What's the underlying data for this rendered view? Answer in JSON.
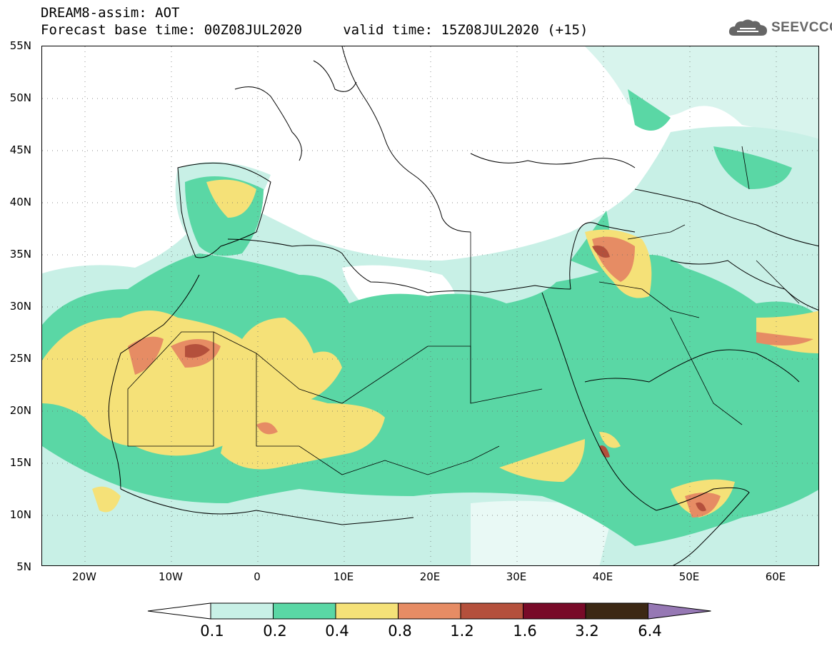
{
  "header": {
    "line1": "DREAM8-assim: AOT",
    "line2": "Forecast base time: 00Z08JUL2020     valid time: 15Z08JUL2020 (+15)"
  },
  "logo": {
    "text": "SEEVCCC",
    "icon": "cloud-icon"
  },
  "map": {
    "lon_range": [
      -25,
      65
    ],
    "lat_range": [
      5,
      55
    ],
    "lat_ticks": [
      "55N",
      "50N",
      "45N",
      "40N",
      "35N",
      "30N",
      "25N",
      "20N",
      "15N",
      "10N",
      "5N"
    ],
    "lon_ticks": [
      "20W",
      "10W",
      "0",
      "10E",
      "20E",
      "30E",
      "40E",
      "50E",
      "60E"
    ],
    "grid": "dotted"
  },
  "colorbar": {
    "labels": [
      "0.1",
      "0.2",
      "0.4",
      "0.8",
      "1.2",
      "1.6",
      "3.2",
      "6.4"
    ],
    "colors": [
      "#ffffff",
      "#c8f0e6",
      "#5ad7a5",
      "#f5e178",
      "#e68c64",
      "#b4503c",
      "#780a28",
      "#3c2814",
      "#9678b4"
    ]
  }
}
